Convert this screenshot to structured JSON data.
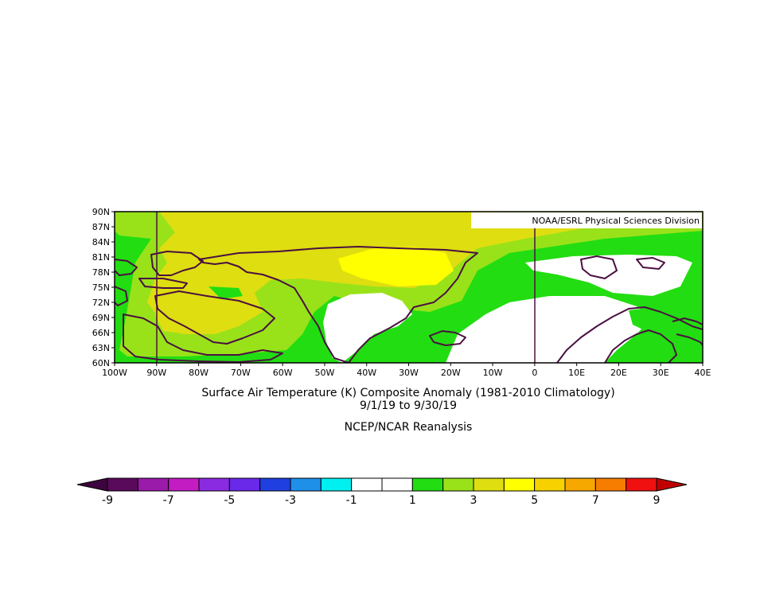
{
  "credit": "NOAA/ESRL Physical Sciences Division",
  "title": "Surface Air Temperature (K) Composite Anomaly (1981-2010 Climatology)",
  "date_range": "9/1/19  to 9/30/19",
  "source": "NCEP/NCAR Reanalysis",
  "map": {
    "lon_labels": [
      "100W",
      "90W",
      "80W",
      "70W",
      "60W",
      "50W",
      "40W",
      "30W",
      "20W",
      "10W",
      "0",
      "10E",
      "20E",
      "30E",
      "40E"
    ],
    "lat_labels": [
      "90N",
      "87N",
      "84N",
      "81N",
      "78N",
      "75N",
      "72N",
      "69N",
      "66N",
      "63N",
      "60N"
    ],
    "lon_range": [
      -100,
      40
    ],
    "lat_range": [
      60,
      90
    ],
    "reference_meridians": [
      "90W",
      "0"
    ]
  },
  "colorbar": {
    "labels": [
      "-9",
      "-7",
      "-5",
      "-3",
      "-1",
      "1",
      "3",
      "5",
      "7",
      "9"
    ],
    "colors": [
      "#5a0a5a",
      "#9a1aaa",
      "#c21cc2",
      "#8a2be2",
      "#6a28e8",
      "#1f3fe0",
      "#1e90e8",
      "#00f0f0",
      "#ffffff",
      "#ffffff",
      "#22dd11",
      "#99e21a",
      "#dede10",
      "#ffff00",
      "#f7d200",
      "#f7a800",
      "#f77d00",
      "#f01010"
    ],
    "end_colors": {
      "low": "#3d053d",
      "high": "#c00000"
    }
  },
  "colors": {
    "warm_1": "#22dd11",
    "warm_3": "#99e21a",
    "warm_4": "#dede10",
    "warm_5": "#ffff00",
    "neutral": "#ffffff",
    "coastline": "#4a1040"
  }
}
